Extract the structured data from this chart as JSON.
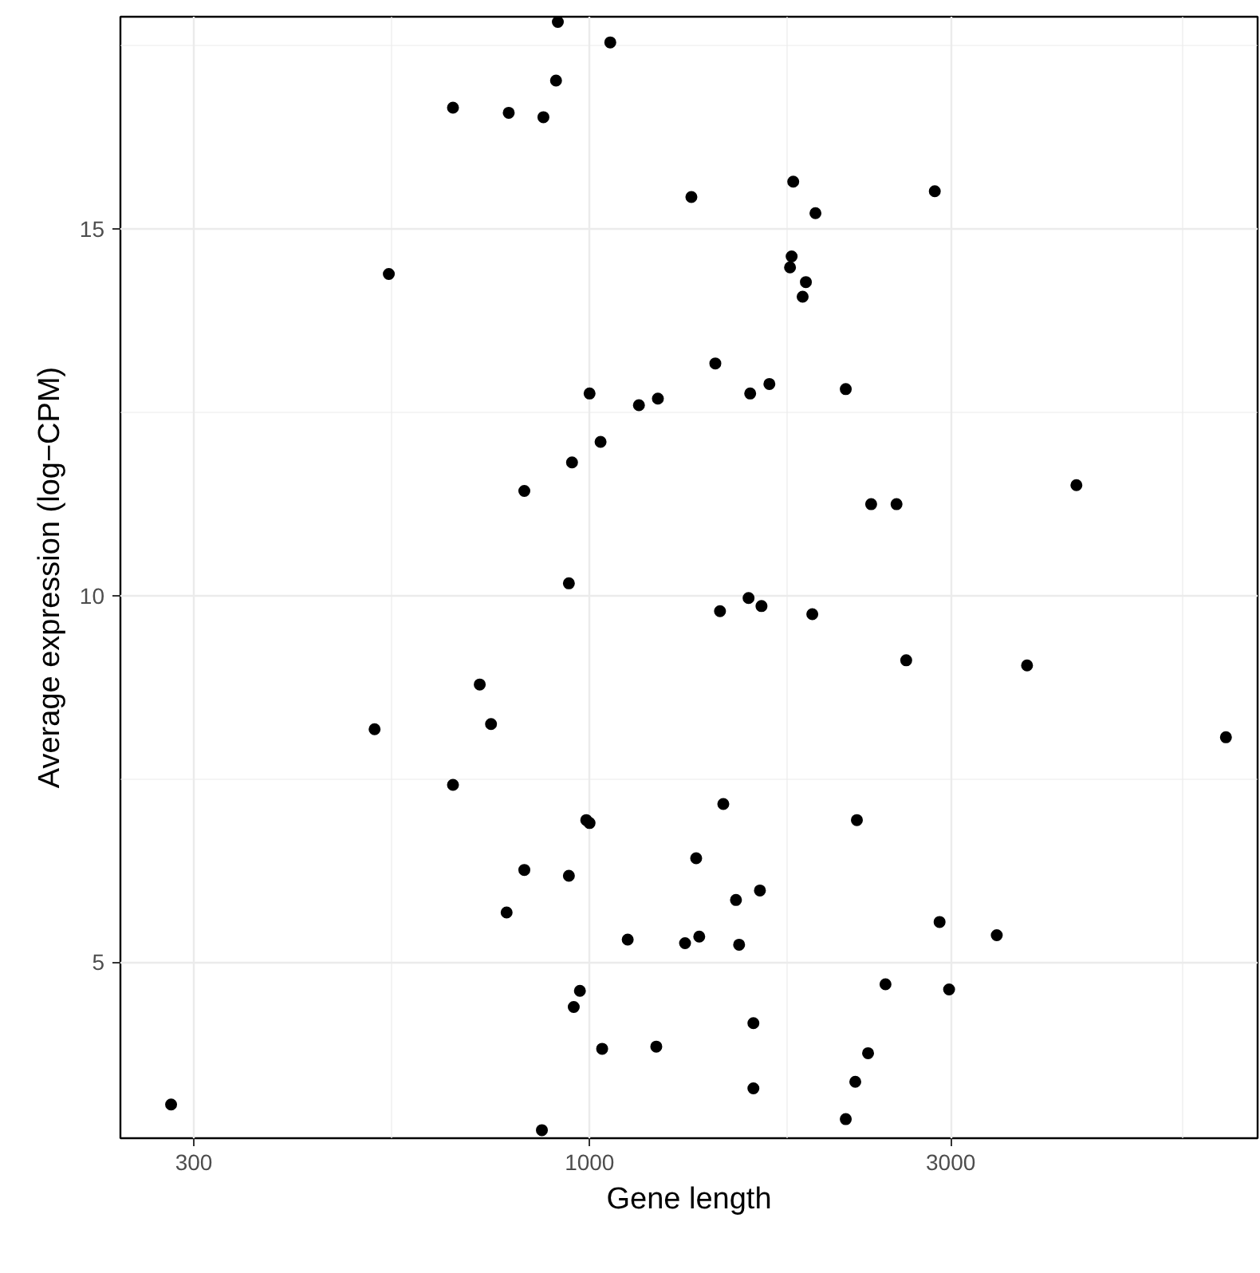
{
  "chart_data": {
    "type": "scatter",
    "xlabel": "Gene length",
    "ylabel": "Average expression (log−CPM)",
    "log": "x",
    "grid": true,
    "marker": "circle",
    "xlim": [
      240,
      7630
    ],
    "xticks": [
      300,
      1000,
      3000
    ],
    "ylim": [
      2.6,
      17.9
    ],
    "yticks": [
      5,
      10,
      15
    ],
    "series": [
      {
        "color": "#000000",
        "x": [
          280,
          865,
          908,
          1065,
          903,
          660,
          782,
          869,
          543,
          1363,
          1858,
          1988,
          2858,
          1849,
          1840,
          1931,
          1912,
          1466,
          1630,
          1728,
          2180,
          1000,
          1231,
          1162,
          1034,
          948,
          820,
          2355,
          2544,
          4397,
          939,
          1622,
          1487,
          1687,
          1969,
          2620,
          3784,
          716,
          741,
          520,
          6929,
          660,
          1502,
          990,
          1000,
          2255,
          1383,
          820,
          939,
          1679,
          1561,
          777,
          2900,
          3451,
          1123,
          1396,
          1337,
          1576,
          2460,
          2985,
          971,
          953,
          1646,
          1039,
          1225,
          2333,
          2244,
          1646,
          2180
        ],
        "values": [
          3.06,
          2.71,
          17.83,
          17.55,
          17.03,
          16.66,
          16.59,
          16.53,
          14.39,
          15.44,
          15.65,
          15.22,
          15.52,
          14.63,
          14.48,
          14.28,
          14.08,
          13.17,
          12.76,
          12.89,
          12.82,
          12.76,
          12.69,
          12.6,
          12.1,
          11.82,
          11.43,
          11.25,
          11.25,
          11.51,
          10.17,
          9.97,
          9.79,
          9.86,
          9.75,
          9.12,
          9.05,
          8.79,
          8.25,
          8.18,
          8.07,
          7.42,
          7.16,
          6.94,
          6.9,
          6.94,
          6.42,
          6.26,
          6.18,
          5.98,
          5.85,
          5.68,
          5.55,
          5.37,
          5.31,
          5.35,
          5.26,
          5.24,
          4.7,
          4.63,
          4.61,
          4.39,
          4.17,
          3.82,
          3.85,
          3.76,
          3.37,
          3.28,
          2.86
        ]
      }
    ]
  }
}
